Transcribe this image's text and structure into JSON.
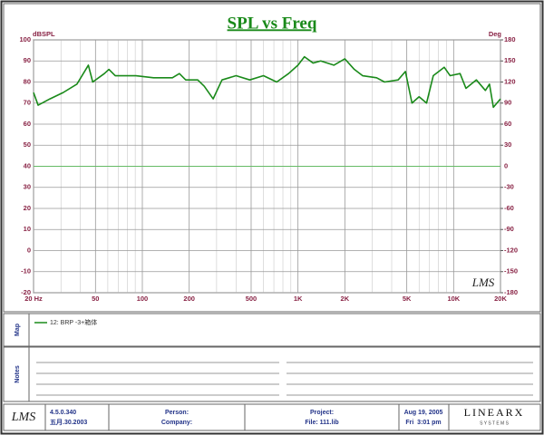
{
  "chart_data": {
    "type": "line",
    "title": "SPL vs Freq",
    "ylabel": "dBSPL",
    "y2label": "Deg",
    "xscale": "log",
    "xlim": [
      20,
      20000
    ],
    "xticks": [
      {
        "value": 20,
        "label": "20 Hz"
      },
      50,
      100,
      200,
      500,
      {
        "value": 1000,
        "label": "1K"
      },
      {
        "value": 2000,
        "label": "2K"
      },
      {
        "value": 5000,
        "label": "5K"
      },
      {
        "value": 10000,
        "label": "10K"
      },
      {
        "value": 20000,
        "label": "20K"
      }
    ],
    "xminorticks": [
      30,
      40,
      60,
      70,
      80,
      90,
      300,
      400,
      600,
      700,
      800,
      900,
      3000,
      4000,
      6000,
      7000,
      8000,
      9000
    ],
    "ylim": [
      -20,
      100
    ],
    "yticks": [
      -20,
      -10,
      0,
      10,
      20,
      30,
      40,
      50,
      60,
      70,
      80,
      90,
      100
    ],
    "y2lim": [
      -180,
      180
    ],
    "y2ticks": [
      -180,
      -150,
      -120,
      -90,
      -60,
      -30,
      0,
      30,
      60,
      90,
      120,
      150,
      180
    ],
    "grid": true,
    "y2_zero_line_color": "#66bb66",
    "x": [
      20,
      21.4,
      25.5,
      31,
      38,
      45,
      48,
      57,
      61,
      67,
      91,
      118,
      156,
      173,
      190,
      227,
      250,
      285,
      325,
      400,
      490,
      600,
      730,
      870,
      1000,
      1100,
      1250,
      1400,
      1700,
      2000,
      2300,
      2600,
      3200,
      3600,
      4400,
      4900,
      5400,
      6000,
      6700,
      7400,
      8700,
      9500,
      11000,
      12000,
      14000,
      16000,
      17000,
      18000,
      20000
    ],
    "series": [
      {
        "name": "12: BRP -3+箱体",
        "color": "#1a8a1a",
        "values": [
          75,
          69,
          72,
          75,
          79,
          88,
          80,
          84,
          86,
          83,
          83,
          82,
          82,
          84,
          81,
          81,
          78,
          72,
          81,
          83,
          81,
          83,
          80,
          84,
          88,
          92,
          89,
          90,
          88,
          91,
          86,
          83,
          82,
          80,
          81,
          85,
          70,
          73,
          70,
          83,
          87,
          83,
          84,
          77,
          81,
          76,
          79,
          68,
          72
        ]
      }
    ],
    "logo": "LMS"
  },
  "map_label": "Map",
  "notes_label": "Notes",
  "footer": {
    "logo": "LMS",
    "version": "4.5.0.340",
    "date": "五月.30.2003",
    "person": "Person:",
    "company": "Company:",
    "project": "Project:",
    "file": "File: 111.lib",
    "run_date": "Aug 19, 2005",
    "run_time": "Fri  3:01 pm",
    "brand": "LINEARX",
    "brand_sub": "S Y S T E M S"
  }
}
